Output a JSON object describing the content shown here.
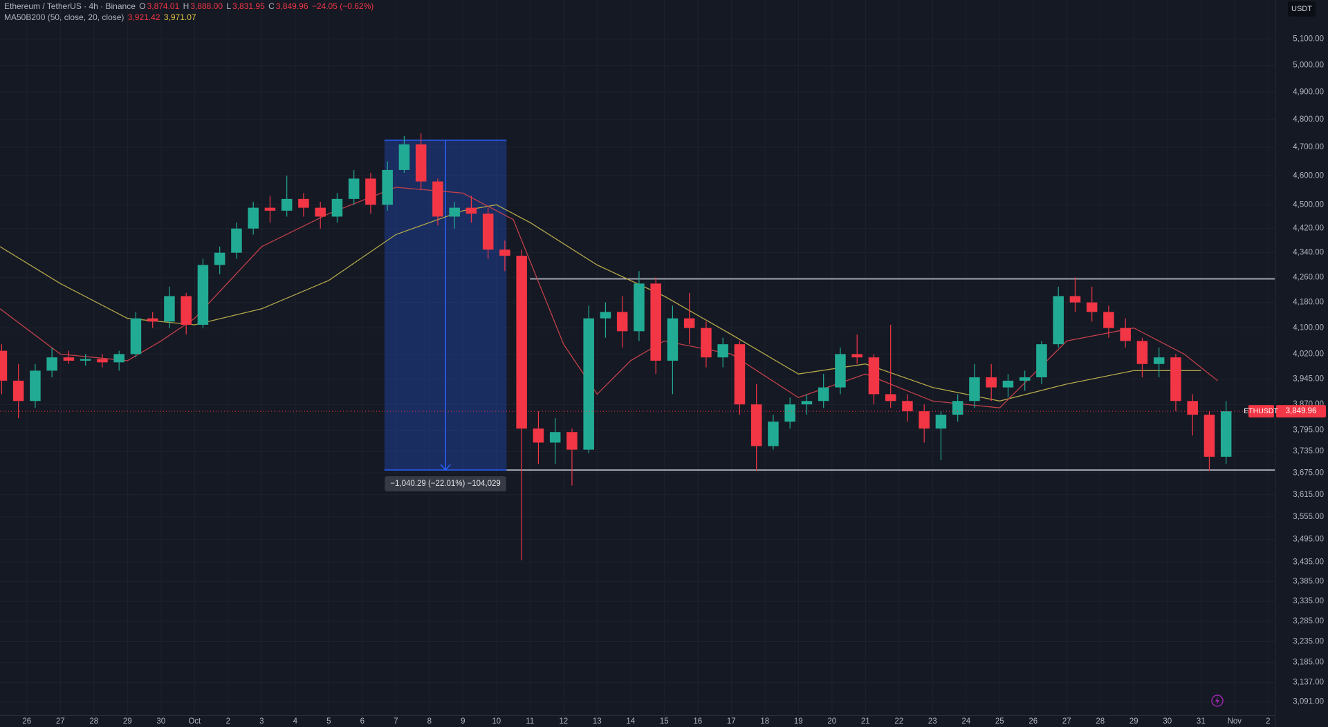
{
  "header": {
    "symbol": "Ethereum / TetherUS · 4h · Binance",
    "o_label": "O",
    "open": "3,874.01",
    "h_label": "H",
    "high": "3,888.00",
    "l_label": "L",
    "low": "3,831.95",
    "c_label": "C",
    "close": "3,849.96",
    "change": "−24.05 (−0.62%)",
    "indicator": "MA50B200 (50, close, 20, close)",
    "ma_fast": "3,921.42",
    "ma_slow": "3,971.07",
    "currency": "USDT"
  },
  "chart_data": {
    "type": "candlestick",
    "log_scale": true,
    "grid": true,
    "up_color": "#22ab94",
    "down_color": "#f23645",
    "xlim": [
      -0.8,
      37.2
    ],
    "ylim": [
      3060,
      5253
    ],
    "xticks": [
      {
        "value": 0,
        "label": "26"
      },
      {
        "value": 1,
        "label": "27"
      },
      {
        "value": 2,
        "label": "28"
      },
      {
        "value": 3,
        "label": "29"
      },
      {
        "value": 4,
        "label": "30"
      },
      {
        "value": 5,
        "label": "Oct"
      },
      {
        "value": 6,
        "label": "2"
      },
      {
        "value": 7,
        "label": "3"
      },
      {
        "value": 8,
        "label": "4"
      },
      {
        "value": 9,
        "label": "5"
      },
      {
        "value": 10,
        "label": "6"
      },
      {
        "value": 11,
        "label": "7"
      },
      {
        "value": 12,
        "label": "8"
      },
      {
        "value": 13,
        "label": "9"
      },
      {
        "value": 14,
        "label": "10"
      },
      {
        "value": 15,
        "label": "11"
      },
      {
        "value": 16,
        "label": "12"
      },
      {
        "value": 17,
        "label": "13"
      },
      {
        "value": 18,
        "label": "14"
      },
      {
        "value": 19,
        "label": "15"
      },
      {
        "value": 20,
        "label": "16"
      },
      {
        "value": 21,
        "label": "17"
      },
      {
        "value": 22,
        "label": "18"
      },
      {
        "value": 23,
        "label": "19"
      },
      {
        "value": 24,
        "label": "20"
      },
      {
        "value": 25,
        "label": "21"
      },
      {
        "value": 26,
        "label": "22"
      },
      {
        "value": 27,
        "label": "23"
      },
      {
        "value": 28,
        "label": "24"
      },
      {
        "value": 29,
        "label": "25"
      },
      {
        "value": 30,
        "label": "26"
      },
      {
        "value": 31,
        "label": "27"
      },
      {
        "value": 32,
        "label": "28"
      },
      {
        "value": 33,
        "label": "29"
      },
      {
        "value": 34,
        "label": "30"
      },
      {
        "value": 35,
        "label": "31"
      },
      {
        "value": 36,
        "label": "Nov"
      },
      {
        "value": 37,
        "label": "2"
      }
    ],
    "yticks": [
      {
        "value": 5100,
        "label": "5,100.00"
      },
      {
        "value": 5000,
        "label": "5,000.00"
      },
      {
        "value": 4900,
        "label": "4,900.00"
      },
      {
        "value": 4800,
        "label": "4,800.00"
      },
      {
        "value": 4700,
        "label": "4,700.00"
      },
      {
        "value": 4600,
        "label": "4,600.00"
      },
      {
        "value": 4500,
        "label": "4,500.00"
      },
      {
        "value": 4420,
        "label": "4,420.00"
      },
      {
        "value": 4340,
        "label": "4,340.00"
      },
      {
        "value": 4260,
        "label": "4,260.00"
      },
      {
        "value": 4180,
        "label": "4,180.00"
      },
      {
        "value": 4100,
        "label": "4,100.00"
      },
      {
        "value": 4020,
        "label": "4,020.00"
      },
      {
        "value": 3945,
        "label": "3,945.00"
      },
      {
        "value": 3870,
        "label": "3,870.00"
      },
      {
        "value": 3795,
        "label": "3,795.00"
      },
      {
        "value": 3735,
        "label": "3,735.00"
      },
      {
        "value": 3675,
        "label": "3,675.00"
      },
      {
        "value": 3615,
        "label": "3,615.00"
      },
      {
        "value": 3555,
        "label": "3,555.00"
      },
      {
        "value": 3495,
        "label": "3,495.00"
      },
      {
        "value": 3435,
        "label": "3,435.00"
      },
      {
        "value": 3385,
        "label": "3,385.00"
      },
      {
        "value": 3335,
        "label": "3,335.00"
      },
      {
        "value": 3285,
        "label": "3,285.00"
      },
      {
        "value": 3235,
        "label": "3,235.00"
      },
      {
        "value": 3185,
        "label": "3,185.00"
      },
      {
        "value": 3137,
        "label": "3,137.00"
      },
      {
        "value": 3091,
        "label": "3,091.00"
      }
    ],
    "x": [
      -0.75,
      -0.25,
      0.25,
      0.75,
      1.25,
      1.75,
      2.25,
      2.75,
      3.25,
      3.75,
      4.25,
      4.75,
      5.25,
      5.75,
      6.25,
      6.75,
      7.25,
      7.75,
      8.25,
      8.75,
      9.25,
      9.75,
      10.25,
      10.75,
      11.25,
      11.75,
      12.25,
      12.75,
      13.25,
      13.75,
      14.25,
      14.75,
      15.25,
      15.75,
      16.25,
      16.75,
      17.25,
      17.75,
      18.25,
      18.75,
      19.25,
      19.75,
      20.25,
      20.75,
      21.25,
      21.75,
      22.25,
      22.75,
      23.25,
      23.75,
      24.25,
      24.75,
      25.25,
      25.75,
      26.25,
      26.75,
      27.25,
      27.75,
      28.25,
      28.75,
      29.25,
      29.75,
      30.25,
      30.75,
      31.25,
      31.75,
      32.25,
      32.75,
      33.25,
      33.75,
      34.25,
      34.75,
      35.25,
      35.75
    ],
    "open": [
      4030,
      3940,
      3880,
      3970,
      4010,
      4000,
      4005,
      3995,
      4020,
      4130,
      4120,
      4200,
      4110,
      4300,
      4340,
      4420,
      4490,
      4480,
      4520,
      4490,
      4460,
      4520,
      4590,
      4500,
      4620,
      4710,
      4580,
      4460,
      4490,
      4470,
      4350,
      4330,
      3800,
      3760,
      3790,
      3740,
      4130,
      4150,
      4090,
      4240,
      4000,
      4130,
      4100,
      4010,
      4050,
      3870,
      3750,
      3820,
      3870,
      3880,
      3920,
      4020,
      4010,
      3900,
      3880,
      3850,
      3800,
      3840,
      3880,
      3950,
      3920,
      3940,
      3950,
      4050,
      4200,
      4180,
      4150,
      4100,
      4060,
      3990,
      4010,
      3880,
      3840,
      3720
    ],
    "high": [
      4050,
      3990,
      3990,
      4040,
      4030,
      4020,
      4020,
      4030,
      4150,
      4150,
      4230,
      4210,
      4320,
      4360,
      4440,
      4510,
      4530,
      4600,
      4540,
      4510,
      4540,
      4620,
      4610,
      4650,
      4740,
      4750,
      4590,
      4510,
      4530,
      4490,
      4380,
      4350,
      3850,
      3830,
      3800,
      4170,
      4180,
      4200,
      4280,
      4260,
      4170,
      4210,
      4120,
      4070,
      4060,
      3930,
      3840,
      3890,
      3900,
      3960,
      4040,
      4080,
      4020,
      4110,
      3900,
      3870,
      3850,
      3900,
      3990,
      3990,
      3960,
      3970,
      4060,
      4230,
      4260,
      4230,
      4170,
      4130,
      4070,
      4040,
      4020,
      3900,
      3850,
      3880
    ],
    "low": [
      3900,
      3830,
      3860,
      3950,
      3990,
      3985,
      3980,
      3970,
      4010,
      4100,
      4100,
      4080,
      4100,
      4270,
      4320,
      4400,
      4440,
      4460,
      4460,
      4420,
      4440,
      4500,
      4470,
      4480,
      4610,
      4550,
      4430,
      4420,
      4440,
      4320,
      4280,
      3440,
      3700,
      3700,
      3640,
      3730,
      4070,
      4040,
      4060,
      3960,
      3900,
      4050,
      3980,
      3980,
      3840,
      3680,
      3740,
      3800,
      3840,
      3860,
      3900,
      3990,
      3870,
      3860,
      3820,
      3760,
      3710,
      3820,
      3860,
      3880,
      3890,
      3910,
      3930,
      4040,
      4150,
      4120,
      4070,
      4040,
      3950,
      3950,
      3850,
      3780,
      3680,
      3700
    ],
    "close": [
      3940,
      3880,
      3970,
      4010,
      4000,
      4005,
      3995,
      4020,
      4130,
      4120,
      4200,
      4110,
      4300,
      4340,
      4420,
      4490,
      4480,
      4520,
      4490,
      4460,
      4520,
      4590,
      4500,
      4620,
      4710,
      4580,
      4460,
      4490,
      4470,
      4350,
      4330,
      3800,
      3760,
      3790,
      3740,
      4130,
      4150,
      4090,
      4240,
      4000,
      4130,
      4100,
      4010,
      4050,
      3870,
      3750,
      3820,
      3870,
      3880,
      3920,
      4020,
      4010,
      3900,
      3880,
      3850,
      3800,
      3840,
      3880,
      3950,
      3920,
      3940,
      3950,
      4050,
      4200,
      4180,
      4150,
      4100,
      4060,
      3990,
      4010,
      3880,
      3840,
      3720,
      3850
    ],
    "series": [
      {
        "name": "MA50",
        "color": "#b5a84a",
        "x": [
          -0.8,
          1,
          3,
          5,
          7,
          9,
          11,
          13,
          14,
          15,
          17,
          19,
          21,
          23,
          25,
          27,
          29,
          31,
          33,
          35
        ],
        "values": [
          4360,
          4240,
          4130,
          4110,
          4160,
          4250,
          4400,
          4480,
          4500,
          4440,
          4300,
          4200,
          4080,
          3960,
          3990,
          3920,
          3880,
          3930,
          3970,
          3970
        ]
      },
      {
        "name": "MA20",
        "color": "#c2414a",
        "x": [
          -0.8,
          1,
          3,
          4,
          5,
          7,
          9,
          11,
          13,
          14.5,
          16,
          17,
          18,
          19,
          21,
          23,
          25,
          27,
          29,
          31,
          33,
          34.5,
          35.5
        ],
        "values": [
          4160,
          4020,
          4000,
          4060,
          4130,
          4360,
          4470,
          4560,
          4540,
          4450,
          4050,
          3900,
          4000,
          4060,
          4020,
          3890,
          3960,
          3880,
          3860,
          4060,
          4100,
          4020,
          3940
        ]
      }
    ],
    "levels": [
      {
        "value": 4255,
        "x0": 15,
        "x1": 37.2
      },
      {
        "value": 3683,
        "x0": 14.3,
        "x1": 37.2
      }
    ],
    "measure": {
      "x0": 10.66,
      "x1": 14.3,
      "top": 4725,
      "bottom": 3683,
      "label": "−1,040.29 (−22.01%) −104,029"
    },
    "last_price": {
      "symbol": "ETHUSDT",
      "value": 3849.96,
      "label": "3,849.96"
    }
  }
}
